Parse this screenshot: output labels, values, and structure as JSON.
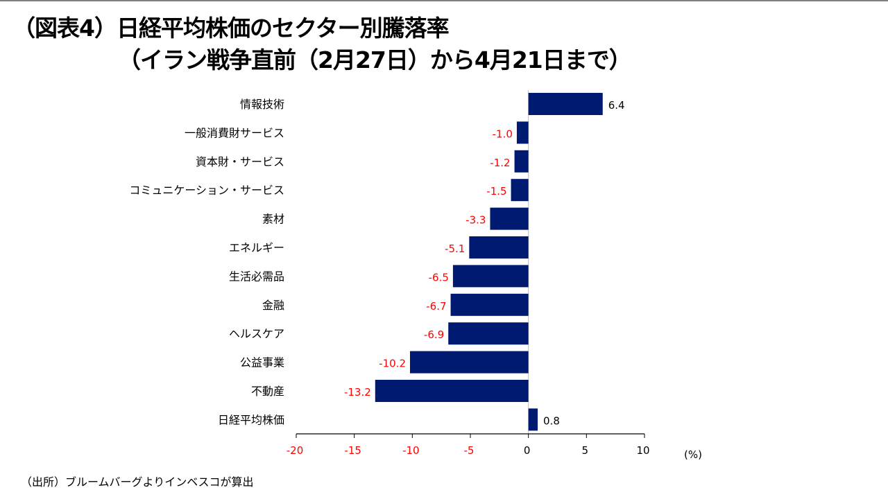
{
  "title": {
    "line1": "（図表4）日経平均株価のセクター別騰落率",
    "line2": "（イラン戦争直前（2月27日）から4月21日まで）"
  },
  "source": "（出所）ブルームバーグよりインベスコが算出",
  "chart_data": {
    "type": "bar",
    "orientation": "horizontal",
    "categories": [
      "情報技術",
      "一般消費財サービス",
      "資本財・サービス",
      "コミュニケーション・サービス",
      "素材",
      "エネルギー",
      "生活必需品",
      "金融",
      "ヘルスケア",
      "公益事業",
      "不動産",
      "日経平均株価"
    ],
    "values": [
      6.4,
      -1.0,
      -1.2,
      -1.5,
      -3.3,
      -5.1,
      -6.5,
      -6.7,
      -6.9,
      -10.2,
      -13.2,
      0.8
    ],
    "data_labels": [
      "6.4",
      "-1.0",
      "-1.2",
      "-1.5",
      "-3.3",
      "-5.1",
      "-6.5",
      "-6.7",
      "-6.9",
      "-10.2",
      "-13.2",
      "0.8"
    ],
    "xlim": [
      -20,
      10
    ],
    "xticks": [
      "-20",
      "-15",
      "-10",
      "-5",
      "0",
      "5",
      "10"
    ],
    "xtick_values": [
      -20,
      -15,
      -10,
      -5,
      0,
      5,
      10
    ],
    "unit_label": "(%)",
    "grid": false,
    "bar_color": "#001A72",
    "negative_label_color": "#FF0000",
    "positive_label_color": "#000000"
  }
}
